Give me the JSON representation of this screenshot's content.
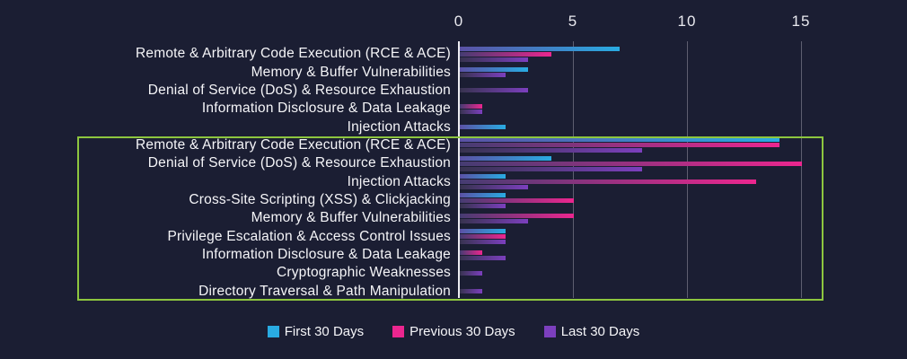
{
  "chart_data": {
    "type": "bar",
    "orientation": "horizontal",
    "title": "",
    "x_axis": {
      "ticks": [
        "0",
        "5",
        "10",
        "15"
      ],
      "min": 0,
      "max": 16,
      "gridlines": true,
      "position": "top"
    },
    "categories": [
      "Remote & Arbitrary Code Execution (RCE & ACE)",
      "Memory & Buffer Vulnerabilities",
      "Denial of Service (DoS) & Resource Exhaustion",
      "Information Disclosure & Data Leakage",
      "Injection Attacks",
      "Remote & Arbitrary Code Execution (RCE & ACE)",
      "Denial of Service (DoS) & Resource Exhaustion",
      "Injection Attacks",
      "Cross-Site Scripting (XSS) & Clickjacking",
      "Memory & Buffer Vulnerabilities",
      "Privilege Escalation & Access Control Issues",
      "Information Disclosure & Data Leakage",
      "Cryptographic Weaknesses",
      "Directory Traversal & Path Manipulation"
    ],
    "series": [
      {
        "name": "First 30 Days",
        "color": "#29ABE2",
        "gradient_from": "#5B51A5",
        "values": [
          7,
          3,
          0,
          0,
          2,
          14,
          4,
          2,
          2,
          0,
          2,
          0,
          0,
          0
        ]
      },
      {
        "name": "Previous 30 Days",
        "color": "#EC268F",
        "gradient_from": "#453C72",
        "values": [
          4,
          0,
          0,
          1,
          0,
          14,
          15,
          13,
          5,
          5,
          2,
          1,
          0,
          0
        ]
      },
      {
        "name": "Last 30 Days",
        "color": "#7C3FBE",
        "gradient_from": "#37334F",
        "values": [
          3,
          2,
          3,
          1,
          0,
          8,
          8,
          3,
          2,
          3,
          2,
          2,
          1,
          1
        ]
      }
    ],
    "legend": {
      "position": "bottom",
      "items": [
        "First 30 Days",
        "Previous 30 Days",
        "Last 30 Days"
      ]
    },
    "highlight_box": {
      "color": "#8DC63F",
      "first_category_index": 5,
      "last_category_index": 13
    }
  },
  "colors": {
    "background": "#1B1E33",
    "label_text": "#F5F5F8",
    "tick_text": "#E9E9EF",
    "gridline": "#5E5E70",
    "zero_axis": "#EDEDF2",
    "highlight": "#8DC63F"
  }
}
